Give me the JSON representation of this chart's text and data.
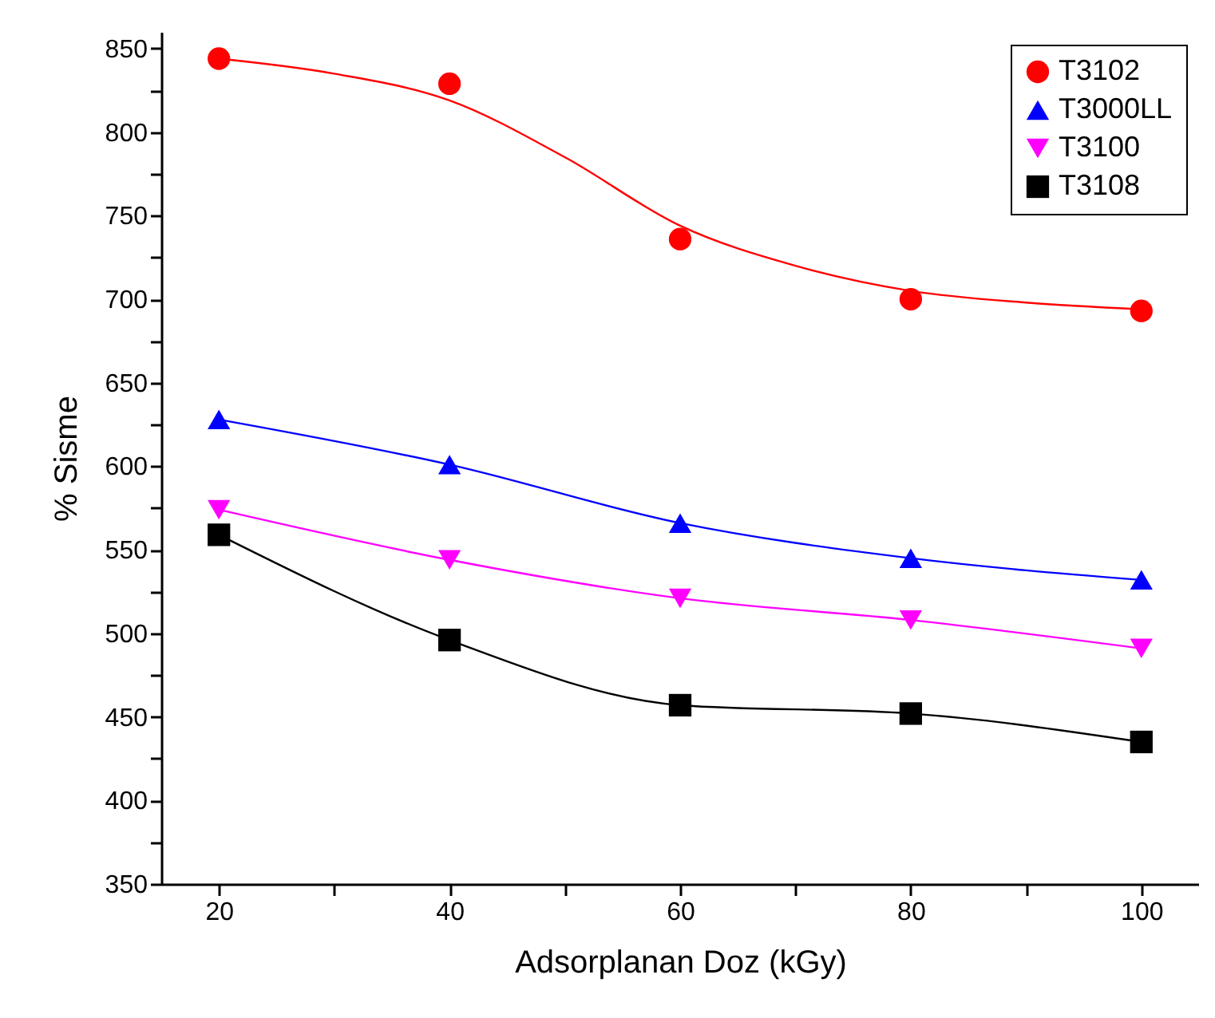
{
  "chart_data": {
    "type": "line",
    "xlabel": "Adsorplanan Doz (kGy)",
    "ylabel": "% Sisme",
    "x": [
      20,
      40,
      60,
      80,
      100
    ],
    "series": [
      {
        "name": "T3102",
        "type": "scatter",
        "color": "#ff0000",
        "marker": "circle",
        "values": [
          844,
          829,
          736,
          700,
          693
        ]
      },
      {
        "name": "T3000LL",
        "color": "#0000ff",
        "marker": "triangle",
        "values": [
          628,
          601,
          566,
          545,
          532
        ]
      },
      {
        "name": "T3100",
        "color": "#ff00ff",
        "marker": "triangle-down",
        "values": [
          574,
          544,
          521,
          508,
          491
        ]
      },
      {
        "name": "T3108",
        "color": "#000000",
        "marker": "square",
        "values": [
          559,
          496,
          457,
          452,
          435
        ]
      },
      {
        "type": "line",
        "color": "#ff0000",
        "marker": "none",
        "x": [
          20,
          30,
          40,
          50,
          60,
          70,
          80,
          90,
          100
        ],
        "values": [
          844,
          835,
          819,
          785,
          744,
          720,
          705,
          698,
          694
        ]
      }
    ],
    "xlim": [
      15,
      105
    ],
    "ylim": [
      350,
      860
    ],
    "xticks": [
      20,
      {
        "value": 30,
        "label": null
      },
      40,
      {
        "value": 50,
        "label": null
      },
      60,
      {
        "value": 70,
        "label": null
      },
      80,
      {
        "value": 90,
        "label": null
      },
      100
    ],
    "yticks": [
      350,
      {
        "value": 375,
        "label": null
      },
      400,
      {
        "value": 425,
        "label": null
      },
      450,
      {
        "value": 475,
        "label": null
      },
      500,
      {
        "value": 525,
        "label": null
      },
      550,
      {
        "value": 575,
        "label": null
      },
      600,
      {
        "value": 625,
        "label": null
      },
      650,
      {
        "value": 675,
        "label": null
      },
      700,
      {
        "value": 725,
        "label": null
      },
      750,
      {
        "value": 775,
        "label": null
      },
      800,
      {
        "value": 825,
        "label": null
      },
      850
    ],
    "grid": false,
    "legend": "top right",
    "line_style": "solid"
  }
}
